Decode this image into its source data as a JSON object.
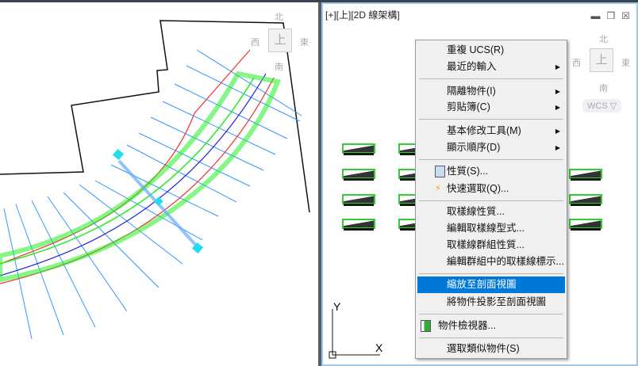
{
  "right_viewport": {
    "label": "[+][上][2D 線架構]",
    "viewcube": {
      "north": "北",
      "south": "南",
      "east": "東",
      "west": "西",
      "face": "上"
    },
    "wcs_label": "WCS ▽",
    "window_buttons": [
      "minimize-icon",
      "restore-icon",
      "close-icon"
    ]
  },
  "left_viewport": {
    "viewcube": {
      "north": "北",
      "south": "南",
      "east": "東",
      "west": "西",
      "face": "上"
    }
  },
  "ucs": {
    "y": "Y",
    "x": "X"
  },
  "context_menu": {
    "items": [
      {
        "label": "重複 UCS(R)"
      },
      {
        "label": "最近的輸入",
        "submenu": true
      },
      {
        "label": "隔離物件(I)",
        "submenu": true
      },
      {
        "label": "剪貼簿(C)",
        "submenu": true
      },
      {
        "label": "基本修改工具(M)",
        "submenu": true
      },
      {
        "label": "顯示順序(D)",
        "submenu": true
      },
      {
        "label": "性質(S)...",
        "icon": "properties-icon"
      },
      {
        "label": "快速選取(Q)...",
        "icon": "quick-select-icon"
      },
      {
        "label": "取樣線性質..."
      },
      {
        "label": "編輯取樣線型式..."
      },
      {
        "label": "取樣線群組性質..."
      },
      {
        "label": "編輯群組中的取樣線標示..."
      },
      {
        "label": "縮放至剖面視圖",
        "highlighted": true
      },
      {
        "label": "將物件投影至剖面視圖"
      },
      {
        "label": "物件檢視器...",
        "icon": "object-viewer-icon"
      },
      {
        "label": "選取類似物件(S)"
      }
    ],
    "highlight_color": "#0078d7"
  }
}
